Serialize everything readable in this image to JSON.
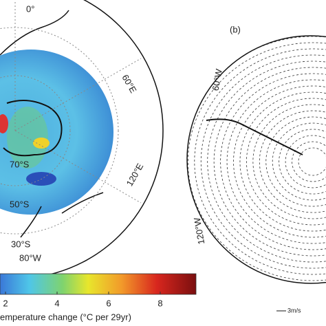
{
  "maps": [
    {
      "labels": [
        "0°",
        "60°E",
        "120°E",
        "70°S",
        "50°S",
        "30°S",
        "80°W"
      ]
    },
    {
      "panel": "(b)",
      "labels": [
        "60°W",
        "120°W"
      ],
      "scale": "3m/s"
    }
  ],
  "colorbar": {
    "ticks": [
      2,
      4,
      6,
      8
    ],
    "label": "emperature change (°C per 29yr)"
  }
}
